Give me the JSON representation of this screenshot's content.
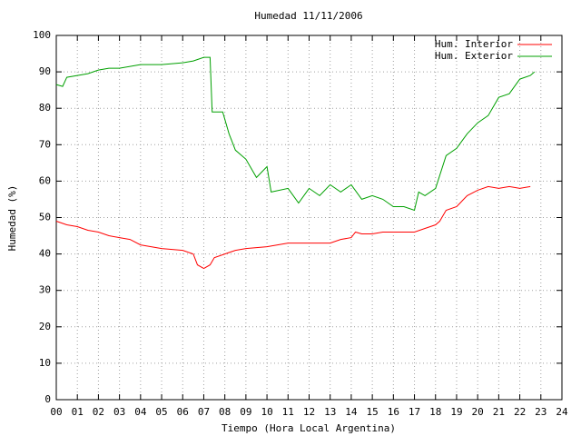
{
  "chart_data": {
    "type": "line",
    "title": "Humedad 11/11/2006",
    "xlabel": "Tiempo (Hora Local Argentina)",
    "ylabel": "Humedad (%)",
    "xlim": [
      0,
      24
    ],
    "ylim": [
      0,
      100
    ],
    "xticks": [
      {
        "value": 0,
        "label": "00"
      },
      {
        "value": 1,
        "label": "01"
      },
      {
        "value": 2,
        "label": "02"
      },
      {
        "value": 3,
        "label": "03"
      },
      {
        "value": 4,
        "label": "04"
      },
      {
        "value": 5,
        "label": "05"
      },
      {
        "value": 6,
        "label": "06"
      },
      {
        "value": 7,
        "label": "07"
      },
      {
        "value": 8,
        "label": "08"
      },
      {
        "value": 9,
        "label": "09"
      },
      10,
      11,
      12,
      13,
      14,
      15,
      16,
      17,
      18,
      19,
      20,
      21,
      22,
      23,
      24
    ],
    "yticks": [
      0,
      10,
      20,
      30,
      40,
      50,
      60,
      70,
      80,
      90,
      100
    ],
    "grid": true,
    "legend": "top-right",
    "series": [
      {
        "name": "Hum. Interior",
        "color": "#ff0000",
        "x": [
          0,
          0.5,
          1,
          1.5,
          2,
          2.5,
          3,
          3.5,
          4,
          5,
          6,
          6.5,
          6.7,
          7,
          7.3,
          7.5,
          8,
          8.5,
          9,
          10,
          10.5,
          11,
          12,
          13,
          13.5,
          14,
          14.2,
          14.5,
          15,
          15.5,
          16,
          17,
          17.5,
          18,
          18.2,
          18.5,
          19,
          19.5,
          20,
          20.5,
          21,
          21.5,
          22,
          22.5
        ],
        "values": [
          49,
          48,
          47.5,
          46.5,
          46,
          45,
          44.5,
          44,
          42.5,
          41.5,
          41,
          40,
          37,
          36,
          37,
          39,
          40,
          41,
          41.5,
          42,
          42.5,
          43,
          43,
          43,
          44,
          44.5,
          46,
          45.5,
          45.5,
          46,
          46,
          46,
          47,
          48,
          49,
          52,
          53,
          56,
          57.5,
          58.5,
          58,
          58.5,
          58,
          58.5
        ]
      },
      {
        "name": "Hum. Exterior",
        "color": "#00a000",
        "x": [
          0,
          0.3,
          0.5,
          1,
          1.5,
          2,
          2.5,
          3,
          4,
          5,
          6,
          6.5,
          7,
          7.3,
          7.4,
          7.9,
          8.2,
          8.5,
          9,
          9.5,
          10,
          10.2,
          11,
          11.5,
          12,
          12.5,
          13,
          13.5,
          14,
          14.5,
          15,
          15.5,
          16,
          16.5,
          17,
          17.2,
          17.5,
          18,
          18.5,
          19,
          19.5,
          20,
          20.5,
          21,
          21.5,
          22,
          22.5,
          22.7
        ],
        "values": [
          86.5,
          86,
          88.5,
          89,
          89.5,
          90.5,
          91,
          91,
          92,
          92,
          92.5,
          93,
          94,
          94,
          79,
          79,
          73,
          68.5,
          66,
          61,
          64,
          57,
          58,
          54,
          58,
          56,
          59,
          57,
          59,
          55,
          56,
          55,
          53,
          53,
          52,
          57,
          56,
          58,
          67,
          69,
          73,
          76,
          78,
          83,
          84,
          88,
          89,
          90
        ]
      }
    ]
  }
}
